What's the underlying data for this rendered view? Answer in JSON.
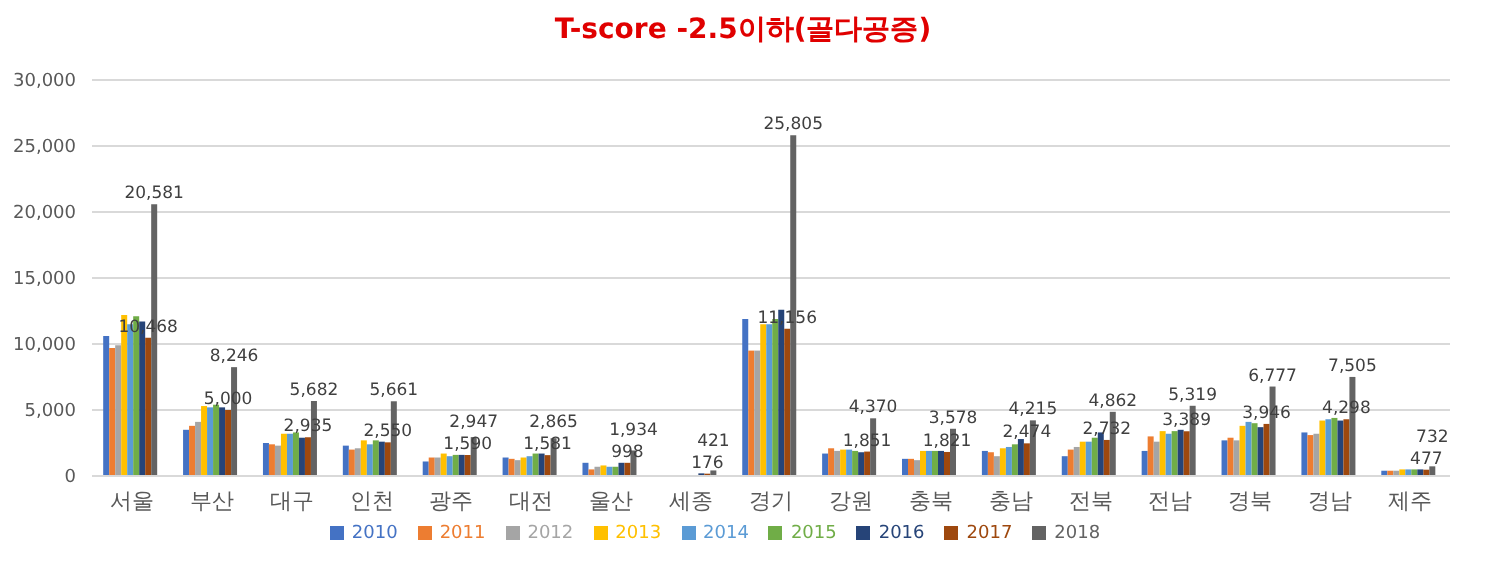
{
  "chart_data": {
    "type": "bar",
    "title": "T-score -2.5이하(골다공증)",
    "categories": [
      "서울",
      "부산",
      "대구",
      "인천",
      "광주",
      "대전",
      "울산",
      "세종",
      "경기",
      "강원",
      "충북",
      "충남",
      "전북",
      "전남",
      "경북",
      "경남",
      "제주"
    ],
    "series": [
      {
        "name": "2010",
        "color": "#4472c4",
        "values": [
          10600,
          3500,
          2500,
          2300,
          1100,
          1400,
          1000,
          0,
          11900,
          1700,
          1300,
          1900,
          1500,
          1900,
          2700,
          3300,
          400
        ]
      },
      {
        "name": "2011",
        "color": "#ed7d31",
        "values": [
          9700,
          3800,
          2400,
          2000,
          1400,
          1300,
          500,
          0,
          9500,
          2100,
          1300,
          1800,
          2000,
          3000,
          2900,
          3100,
          400
        ]
      },
      {
        "name": "2012",
        "color": "#a5a5a5",
        "values": [
          9900,
          4100,
          2300,
          2100,
          1400,
          1200,
          700,
          0,
          9500,
          1900,
          1200,
          1500,
          2200,
          2600,
          2700,
          3200,
          400
        ]
      },
      {
        "name": "2013",
        "color": "#ffc000",
        "values": [
          12200,
          5300,
          3200,
          2700,
          1700,
          1400,
          800,
          null,
          11500,
          2000,
          1900,
          2100,
          2600,
          3400,
          3800,
          4200,
          500
        ]
      },
      {
        "name": "2014",
        "color": "#5b9bd5",
        "values": [
          11500,
          5200,
          3200,
          2400,
          1500,
          1500,
          700,
          null,
          11500,
          2000,
          1900,
          2200,
          2600,
          3200,
          4100,
          4300,
          500
        ]
      },
      {
        "name": "2015",
        "color": "#70ad47",
        "values": [
          12100,
          5400,
          3300,
          2700,
          1600,
          1700,
          700,
          null,
          11900,
          1900,
          1900,
          2400,
          2900,
          3400,
          4000,
          4400,
          500
        ]
      },
      {
        "name": "2016",
        "color": "#264478",
        "values": [
          11700,
          5200,
          2900,
          2600,
          1600,
          1700,
          1000,
          200,
          12600,
          1800,
          1900,
          2800,
          3300,
          3500,
          3700,
          4200,
          500
        ]
      },
      {
        "name": "2017",
        "color": "#9e480e",
        "values": [
          10468,
          5000,
          2935,
          2550,
          1590,
          1581,
          998,
          176,
          11156,
          1851,
          1821,
          2474,
          2732,
          3389,
          3946,
          4298,
          477
        ],
        "value_labels": [
          "10,468",
          "5,000",
          "2,935",
          "2,550",
          "1,590",
          "1,581",
          "998",
          "176",
          "11,156",
          "1,851",
          "1,821",
          "2,474",
          "2,732",
          "3,389",
          "3,946",
          "4,298",
          "477"
        ]
      },
      {
        "name": "2018",
        "color": "#636363",
        "values": [
          20581,
          8246,
          5682,
          5661,
          2947,
          2865,
          1934,
          421,
          25805,
          4370,
          3578,
          4215,
          4862,
          5319,
          6777,
          7505,
          732
        ],
        "value_labels": [
          "20,581",
          "8,246",
          "5,682",
          "5,661",
          "2,947",
          "2,865",
          "1,934",
          "421",
          "25,805",
          "4,370",
          "3,578",
          "4,215",
          "4,862",
          "5,319",
          "6,777",
          "7,505",
          "732"
        ]
      }
    ],
    "ylim": [
      0,
      30000
    ],
    "yticks": [
      0,
      {
        "value": 5000,
        "label": "5,000"
      },
      {
        "value": 10000,
        "label": "10,000"
      },
      {
        "value": 15000,
        "label": "15,000"
      },
      {
        "value": 20000,
        "label": "20,000"
      },
      {
        "value": 25000,
        "label": "25,000"
      },
      {
        "value": 30000,
        "label": "30,000"
      }
    ],
    "grid": "y",
    "legend": "bottom"
  }
}
